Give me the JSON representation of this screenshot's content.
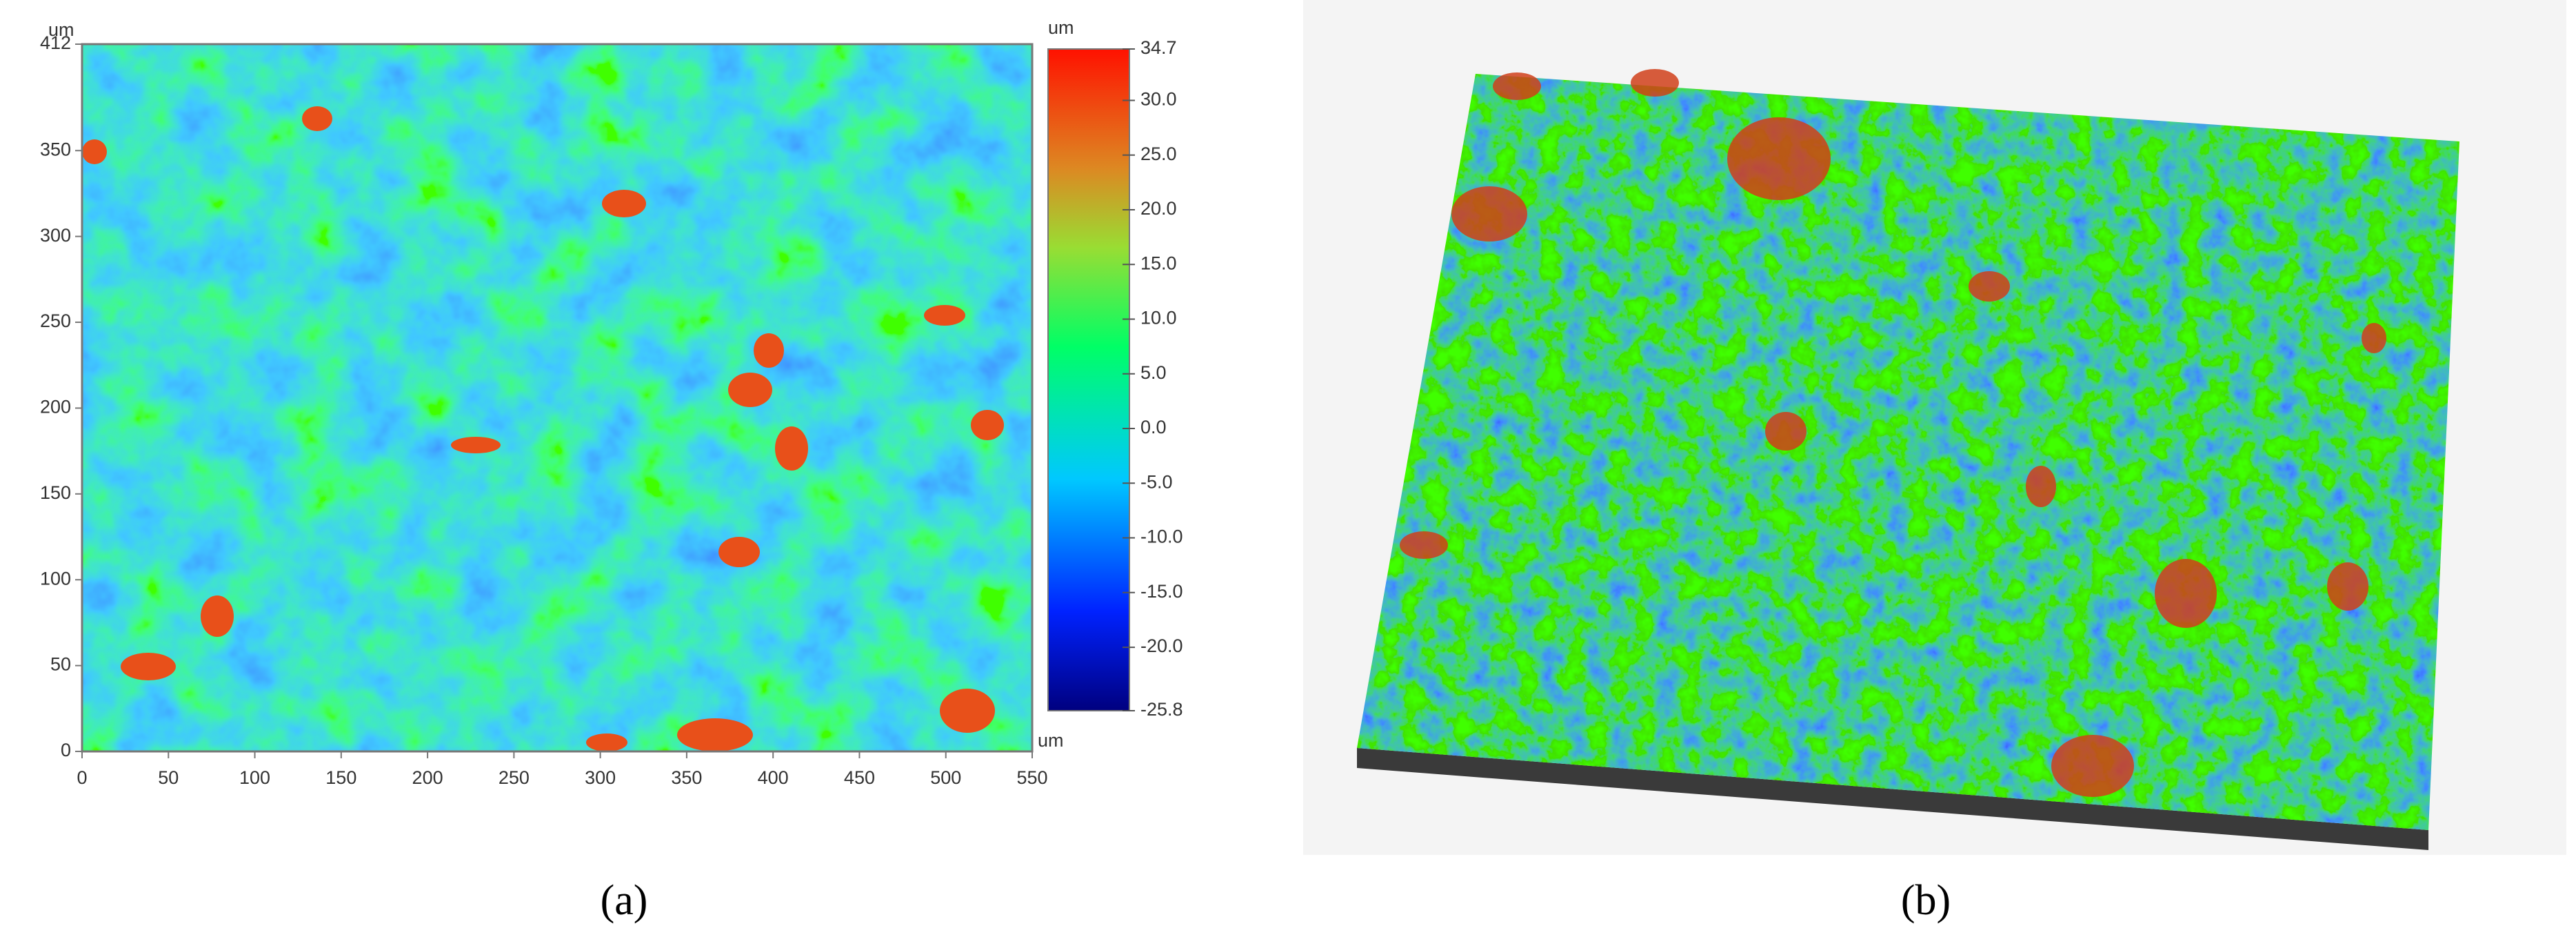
{
  "chart_data": [
    {
      "type": "heatmap",
      "caption": "(a)",
      "x_label": "um",
      "y_label": "um",
      "xlim": [
        0,
        550
      ],
      "xticks": [
        0,
        50,
        100,
        150,
        200,
        250,
        300,
        350,
        400,
        450,
        500,
        550
      ],
      "ylim": [
        0,
        412
      ],
      "yticks": [
        0,
        50,
        100,
        150,
        200,
        250,
        300,
        350,
        412
      ],
      "colorbar": {
        "label": "um",
        "lim": [
          -25.8,
          34.7
        ],
        "ticks": [
          -25.8,
          {
            "value": -20,
            "label": "-20.0"
          },
          {
            "value": -15,
            "label": "-15.0"
          },
          {
            "value": -10,
            "label": "-10.0"
          },
          {
            "value": -5,
            "label": "-5.0"
          },
          {
            "value": 0,
            "label": "0.0"
          },
          {
            "value": 5,
            "label": "5.0"
          },
          {
            "value": 10,
            "label": "10.0"
          },
          {
            "value": 15,
            "label": "15.0"
          },
          {
            "value": 20,
            "label": "20.0"
          },
          {
            "value": 25,
            "label": "25.0"
          },
          {
            "value": 30,
            "label": "30.0"
          },
          34.7
        ]
      }
    },
    {
      "type": "surface3d",
      "caption": "(b)"
    }
  ]
}
